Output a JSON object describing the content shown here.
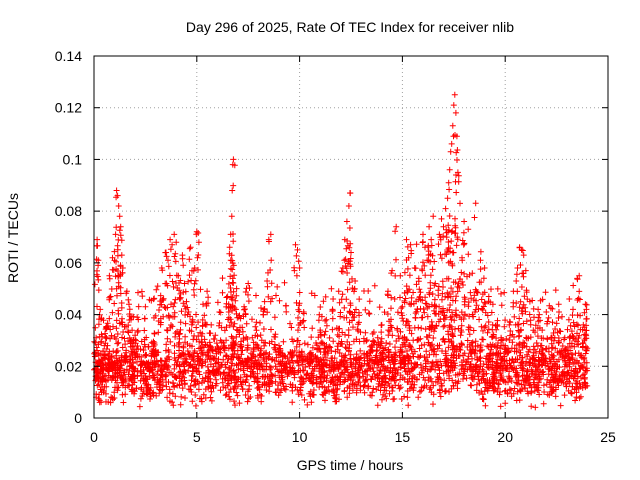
{
  "chart_data": {
    "type": "scatter",
    "title": "Day 296 of 2025, Rate Of TEC Index for receiver nlib",
    "xlabel": "GPS time / hours",
    "ylabel": "ROTI / TECUs",
    "xlim": [
      0,
      25
    ],
    "ylim": [
      0,
      0.14
    ],
    "xticks": [
      0,
      5,
      10,
      15,
      20,
      25
    ],
    "xtick_labels": [
      "0",
      "5",
      "10",
      "15",
      "20",
      "25"
    ],
    "yticks": [
      0,
      0.02,
      0.04,
      0.06,
      0.08,
      0.1,
      0.12,
      0.14
    ],
    "ytick_labels": [
      "0",
      "0.02",
      "0.04",
      "0.06",
      "0.08",
      "0.1",
      "0.12",
      "0.14"
    ],
    "grid": true,
    "marker": "plus",
    "series": [
      {
        "color": "#ff0000",
        "points": [
          [
            0.1,
            0.015
          ],
          [
            0.1,
            0.031
          ],
          [
            0.15,
            0.069
          ],
          [
            0.2,
            0.059
          ],
          [
            0.25,
            0.022
          ],
          [
            0.3,
            0.042
          ],
          [
            0.4,
            0.012
          ],
          [
            0.5,
            0.028
          ],
          [
            0.6,
            0.035
          ],
          [
            0.7,
            0.018
          ],
          [
            0.75,
            0.055
          ],
          [
            0.8,
            0.047
          ],
          [
            0.9,
            0.062
          ],
          [
            1.0,
            0.021
          ],
          [
            1.05,
            0.071
          ],
          [
            1.1,
            0.088
          ],
          [
            1.15,
            0.086
          ],
          [
            1.2,
            0.082
          ],
          [
            1.25,
            0.078
          ],
          [
            1.3,
            0.074
          ],
          [
            1.35,
            0.063
          ],
          [
            1.4,
            0.058
          ],
          [
            1.5,
            0.024
          ],
          [
            1.6,
            0.049
          ],
          [
            1.7,
            0.044
          ],
          [
            1.8,
            0.038
          ],
          [
            1.9,
            0.016
          ],
          [
            2.0,
            0.032
          ],
          [
            2.1,
            0.039
          ],
          [
            2.3,
            0.022
          ],
          [
            2.5,
            0.043
          ],
          [
            2.7,
            0.018
          ],
          [
            2.9,
            0.046
          ],
          [
            3.0,
            0.026
          ],
          [
            3.1,
            0.051
          ],
          [
            3.3,
            0.058
          ],
          [
            3.5,
            0.064
          ],
          [
            3.6,
            0.061
          ],
          [
            3.7,
            0.069
          ],
          [
            3.8,
            0.067
          ],
          [
            3.9,
            0.071
          ],
          [
            4.0,
            0.068
          ],
          [
            4.1,
            0.055
          ],
          [
            4.2,
            0.048
          ],
          [
            4.3,
            0.063
          ],
          [
            4.4,
            0.052
          ],
          [
            4.5,
            0.045
          ],
          [
            4.6,
            0.041
          ],
          [
            4.7,
            0.066
          ],
          [
            4.8,
            0.038
          ],
          [
            4.9,
            0.058
          ],
          [
            5.0,
            0.072
          ],
          [
            5.1,
            0.068
          ],
          [
            5.3,
            0.044
          ],
          [
            5.5,
            0.049
          ],
          [
            5.7,
            0.036
          ],
          [
            5.9,
            0.032
          ],
          [
            6.1,
            0.041
          ],
          [
            6.3,
            0.029
          ],
          [
            6.5,
            0.047
          ],
          [
            6.6,
            0.066
          ],
          [
            6.65,
            0.071
          ],
          [
            6.7,
            0.078
          ],
          [
            6.72,
            0.088
          ],
          [
            6.75,
            0.098
          ],
          [
            6.78,
            0.1
          ],
          [
            6.8,
            0.059
          ],
          [
            6.9,
            0.042
          ],
          [
            7.1,
            0.035
          ],
          [
            7.3,
            0.043
          ],
          [
            7.5,
            0.052
          ],
          [
            7.7,
            0.031
          ],
          [
            7.9,
            0.037
          ],
          [
            8.1,
            0.026
          ],
          [
            8.3,
            0.045
          ],
          [
            8.5,
            0.069
          ],
          [
            8.6,
            0.071
          ],
          [
            8.8,
            0.039
          ],
          [
            9.0,
            0.028
          ],
          [
            9.3,
            0.021
          ],
          [
            9.6,
            0.035
          ],
          [
            9.8,
            0.067
          ],
          [
            9.9,
            0.065
          ],
          [
            10.0,
            0.058
          ],
          [
            10.2,
            0.041
          ],
          [
            10.5,
            0.025
          ],
          [
            10.8,
            0.029
          ],
          [
            11.0,
            0.034
          ],
          [
            11.3,
            0.038
          ],
          [
            11.6,
            0.042
          ],
          [
            11.9,
            0.049
          ],
          [
            12.1,
            0.058
          ],
          [
            12.2,
            0.069
          ],
          [
            12.3,
            0.076
          ],
          [
            12.4,
            0.082
          ],
          [
            12.45,
            0.087
          ],
          [
            12.5,
            0.064
          ],
          [
            12.7,
            0.053
          ],
          [
            12.9,
            0.046
          ],
          [
            13.2,
            0.033
          ],
          [
            13.5,
            0.028
          ],
          [
            13.8,
            0.031
          ],
          [
            14.0,
            0.036
          ],
          [
            14.3,
            0.049
          ],
          [
            14.5,
            0.057
          ],
          [
            14.7,
            0.074
          ],
          [
            14.9,
            0.055
          ],
          [
            15.0,
            0.043
          ],
          [
            15.2,
            0.069
          ],
          [
            15.3,
            0.062
          ],
          [
            15.4,
            0.067
          ],
          [
            15.6,
            0.058
          ],
          [
            15.8,
            0.054
          ],
          [
            16.0,
            0.071
          ],
          [
            16.1,
            0.066
          ],
          [
            16.2,
            0.061
          ],
          [
            16.3,
            0.074
          ],
          [
            16.4,
            0.069
          ],
          [
            16.5,
            0.078
          ],
          [
            16.6,
            0.052
          ],
          [
            16.8,
            0.071
          ],
          [
            16.9,
            0.077
          ],
          [
            17.0,
            0.074
          ],
          [
            17.1,
            0.081
          ],
          [
            17.2,
            0.085
          ],
          [
            17.25,
            0.091
          ],
          [
            17.3,
            0.096
          ],
          [
            17.35,
            0.103
          ],
          [
            17.4,
            0.106
          ],
          [
            17.45,
            0.113
          ],
          [
            17.5,
            0.121
          ],
          [
            17.55,
            0.125
          ],
          [
            17.6,
            0.118
          ],
          [
            17.65,
            0.109
          ],
          [
            17.7,
            0.095
          ],
          [
            17.8,
            0.083
          ],
          [
            17.9,
            0.062
          ],
          [
            18.0,
            0.076
          ],
          [
            18.2,
            0.073
          ],
          [
            18.4,
            0.056
          ],
          [
            18.6,
            0.049
          ],
          [
            18.8,
            0.061
          ],
          [
            19.0,
            0.058
          ],
          [
            19.2,
            0.047
          ],
          [
            19.4,
            0.044
          ],
          [
            19.6,
            0.036
          ],
          [
            19.8,
            0.031
          ],
          [
            20.0,
            0.028
          ],
          [
            20.2,
            0.036
          ],
          [
            20.4,
            0.049
          ],
          [
            20.6,
            0.058
          ],
          [
            20.7,
            0.066
          ],
          [
            20.8,
            0.065
          ],
          [
            20.9,
            0.063
          ],
          [
            21.0,
            0.057
          ],
          [
            21.2,
            0.045
          ],
          [
            21.4,
            0.039
          ],
          [
            21.6,
            0.042
          ],
          [
            21.8,
            0.034
          ],
          [
            22.0,
            0.041
          ],
          [
            22.3,
            0.037
          ],
          [
            22.6,
            0.044
          ],
          [
            22.9,
            0.031
          ],
          [
            23.1,
            0.038
          ],
          [
            23.3,
            0.042
          ],
          [
            23.5,
            0.054
          ],
          [
            23.6,
            0.055
          ],
          [
            23.8,
            0.036
          ],
          [
            23.9,
            0.044
          ],
          [
            23.95,
            0.042
          ]
        ],
        "band": {
          "description_omitted": true,
          "count": 2600,
          "x_range": [
            0,
            24
          ],
          "y_center": 0.018,
          "y_spread": 0.008,
          "y_min": 0.004
        }
      }
    ]
  }
}
